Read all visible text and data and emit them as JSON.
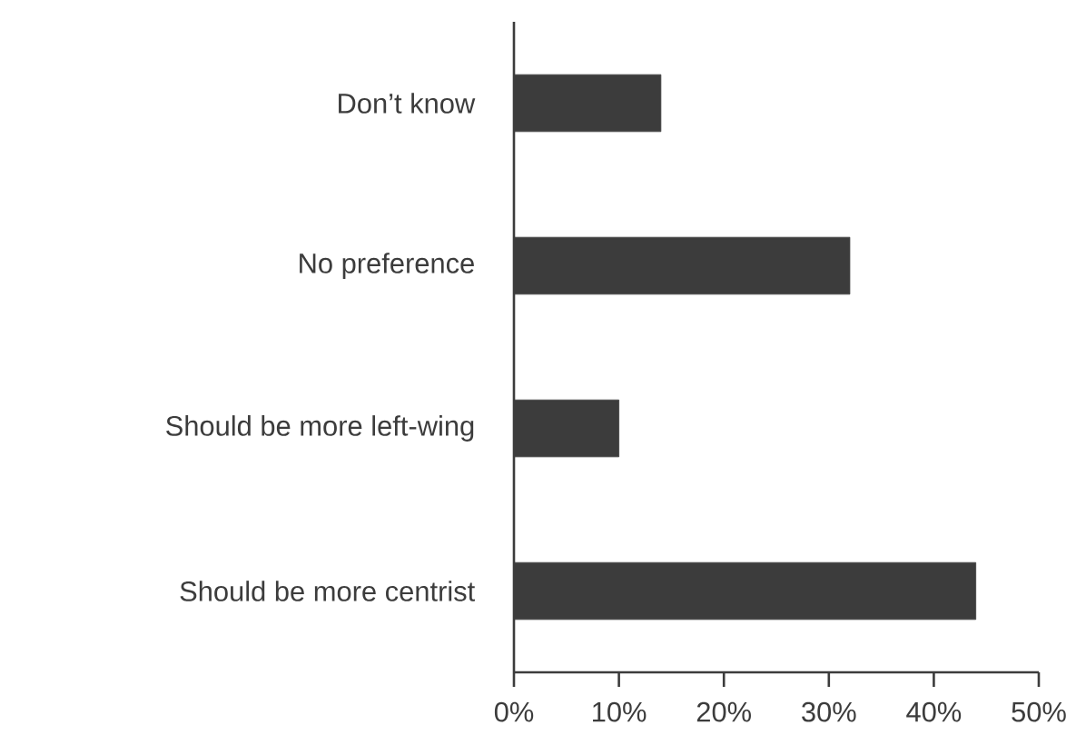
{
  "chart_data": {
    "type": "bar",
    "orientation": "horizontal",
    "categories": [
      "Don’t know",
      "No preference",
      "Should be more left-wing",
      "Should be more centrist"
    ],
    "values": [
      14,
      32,
      10,
      44
    ],
    "color": "#3c3c3c",
    "xlim": [
      0,
      50
    ],
    "xticks": [
      {
        "value": 0,
        "label": "0%"
      },
      {
        "value": 10,
        "label": "10%"
      },
      {
        "value": 20,
        "label": "20%"
      },
      {
        "value": 30,
        "label": "30%"
      },
      {
        "value": 40,
        "label": "40%"
      },
      {
        "value": 50,
        "label": "50%"
      }
    ]
  }
}
